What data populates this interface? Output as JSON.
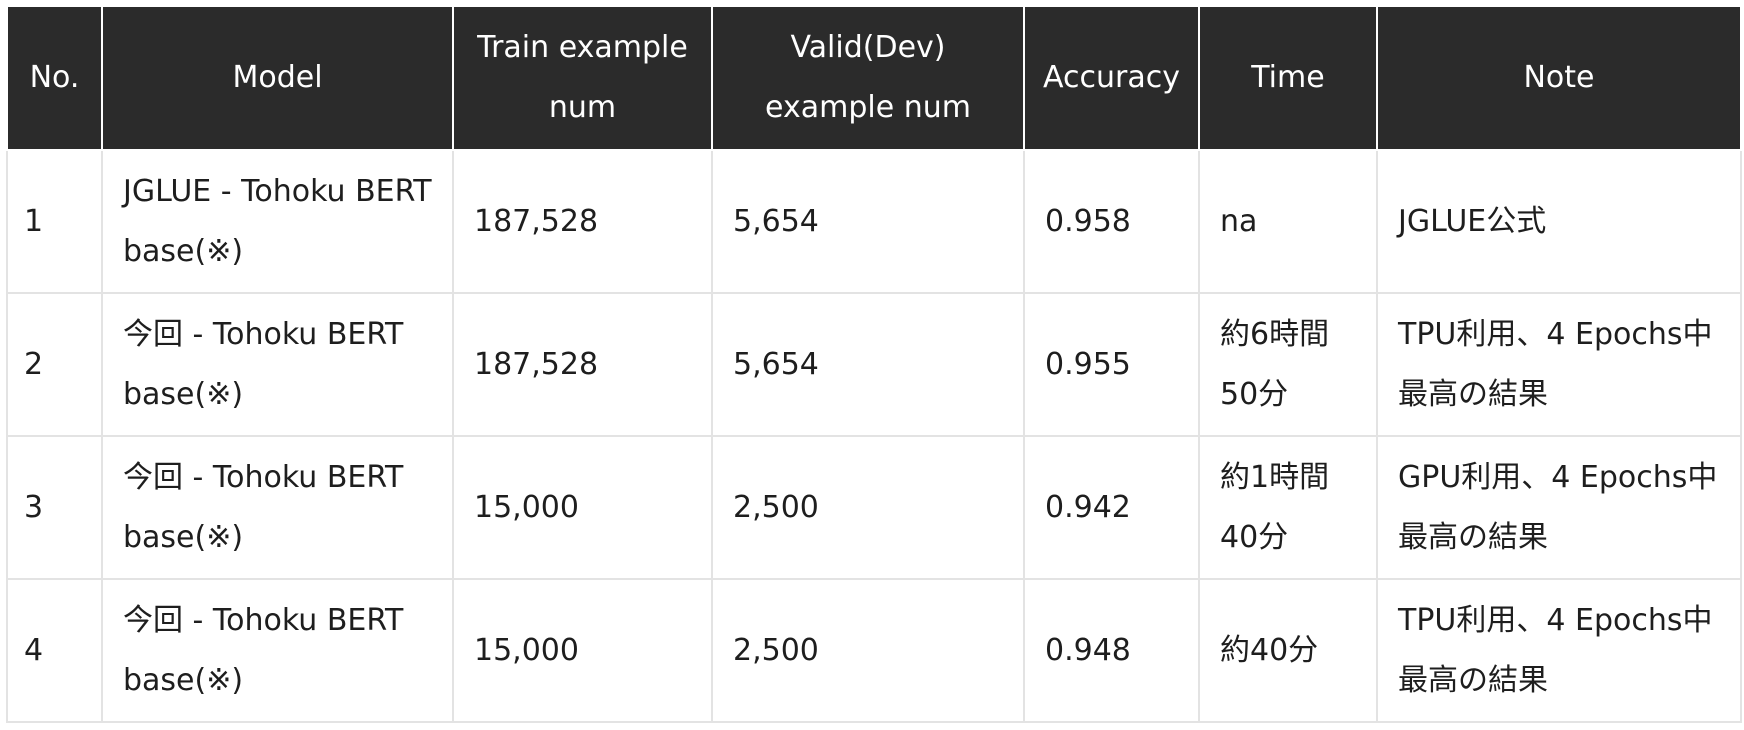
{
  "table": {
    "headers": [
      "No.",
      "Model",
      "Train example num",
      "Valid(Dev) example num",
      "Accuracy",
      "Time",
      "Note"
    ],
    "rows": [
      [
        "1",
        "JGLUE - Tohoku BERT base(※)",
        "187,528",
        "5,654",
        "0.958",
        "na",
        "JGLUE公式"
      ],
      [
        "2",
        "今回 - Tohoku BERT base(※)",
        "187,528",
        "5,654",
        "0.955",
        "約6時間50分",
        "TPU利用、4 Epochs中最高の結果"
      ],
      [
        "3",
        "今回 - Tohoku BERT base(※)",
        "15,000",
        "2,500",
        "0.942",
        "約1時間40分",
        "GPU利用、4 Epochs中最高の結果"
      ],
      [
        "4",
        "今回 - Tohoku BERT base(※)",
        "15,000",
        "2,500",
        "0.948",
        "約40分",
        "TPU利用、4 Epochs中最高の結果"
      ]
    ]
  },
  "colors": {
    "header_background": "#2b2b2b",
    "header_text": "#ffffff",
    "cell_border": "#e3e3e3",
    "body_text": "#1e1e1e"
  }
}
